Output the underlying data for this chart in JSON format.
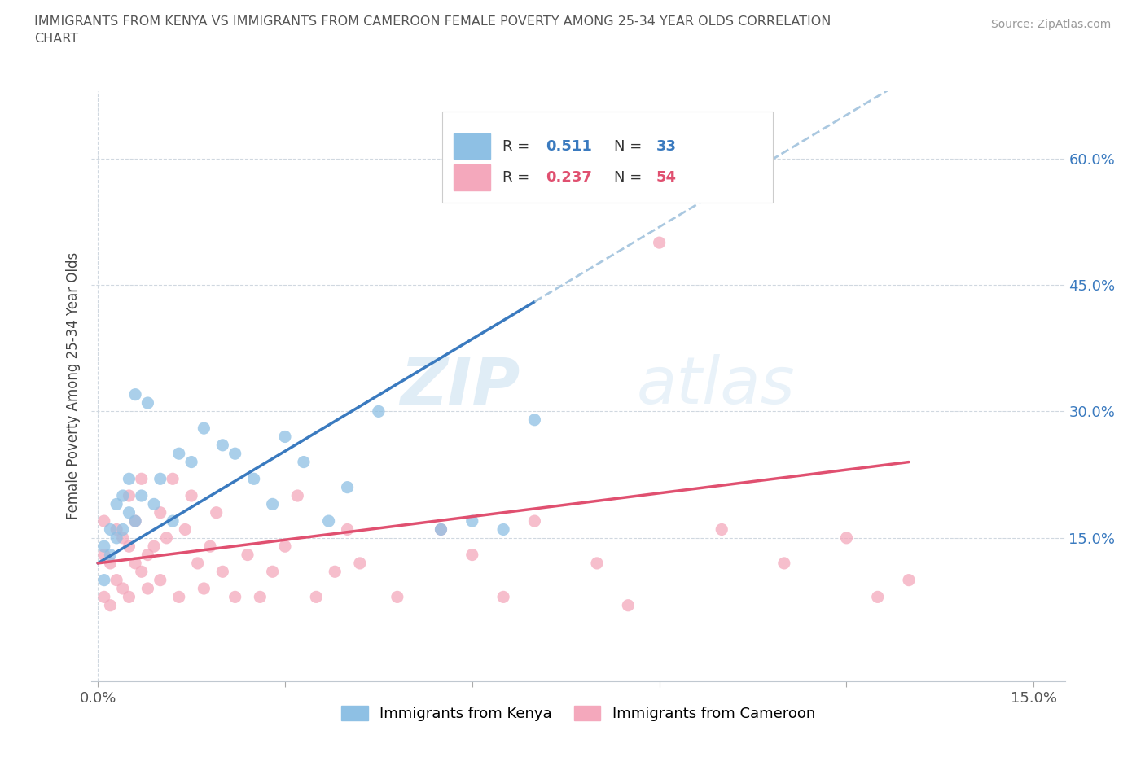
{
  "title": "IMMIGRANTS FROM KENYA VS IMMIGRANTS FROM CAMEROON FEMALE POVERTY AMONG 25-34 YEAR OLDS CORRELATION\nCHART",
  "source": "Source: ZipAtlas.com",
  "ylabel": "Female Poverty Among 25-34 Year Olds",
  "y_ticks_right": [
    0.15,
    0.3,
    0.45,
    0.6
  ],
  "y_tick_labels_right": [
    "15.0%",
    "30.0%",
    "45.0%",
    "60.0%"
  ],
  "xlim": [
    -0.001,
    0.155
  ],
  "ylim": [
    -0.02,
    0.68
  ],
  "kenya_color": "#8ec0e4",
  "cameroon_color": "#f4a8bc",
  "kenya_line_color": "#3a7abf",
  "cameroon_line_color": "#e05070",
  "kenya_R": 0.511,
  "kenya_N": 33,
  "cameroon_R": 0.237,
  "cameroon_N": 54,
  "legend_label_kenya": "Immigrants from Kenya",
  "legend_label_cameroon": "Immigrants from Cameroon",
  "watermark_zip": "ZIP",
  "watermark_atlas": "atlas",
  "kenya_scatter_x": [
    0.001,
    0.001,
    0.002,
    0.002,
    0.003,
    0.003,
    0.004,
    0.004,
    0.005,
    0.005,
    0.006,
    0.006,
    0.007,
    0.008,
    0.009,
    0.01,
    0.012,
    0.013,
    0.015,
    0.017,
    0.02,
    0.022,
    0.025,
    0.028,
    0.03,
    0.033,
    0.037,
    0.04,
    0.045,
    0.055,
    0.06,
    0.065,
    0.07
  ],
  "kenya_scatter_y": [
    0.1,
    0.14,
    0.13,
    0.16,
    0.15,
    0.19,
    0.16,
    0.2,
    0.18,
    0.22,
    0.17,
    0.32,
    0.2,
    0.31,
    0.19,
    0.22,
    0.17,
    0.25,
    0.24,
    0.28,
    0.26,
    0.25,
    0.22,
    0.19,
    0.27,
    0.24,
    0.17,
    0.21,
    0.3,
    0.16,
    0.17,
    0.16,
    0.29
  ],
  "cameroon_scatter_x": [
    0.001,
    0.001,
    0.001,
    0.002,
    0.002,
    0.003,
    0.003,
    0.004,
    0.004,
    0.005,
    0.005,
    0.005,
    0.006,
    0.006,
    0.007,
    0.007,
    0.008,
    0.008,
    0.009,
    0.01,
    0.01,
    0.011,
    0.012,
    0.013,
    0.014,
    0.015,
    0.016,
    0.017,
    0.018,
    0.019,
    0.02,
    0.022,
    0.024,
    0.026,
    0.028,
    0.03,
    0.032,
    0.035,
    0.038,
    0.04,
    0.042,
    0.048,
    0.055,
    0.06,
    0.065,
    0.07,
    0.08,
    0.085,
    0.09,
    0.1,
    0.11,
    0.12,
    0.125,
    0.13
  ],
  "cameroon_scatter_y": [
    0.08,
    0.13,
    0.17,
    0.07,
    0.12,
    0.1,
    0.16,
    0.09,
    0.15,
    0.08,
    0.14,
    0.2,
    0.12,
    0.17,
    0.11,
    0.22,
    0.13,
    0.09,
    0.14,
    0.1,
    0.18,
    0.15,
    0.22,
    0.08,
    0.16,
    0.2,
    0.12,
    0.09,
    0.14,
    0.18,
    0.11,
    0.08,
    0.13,
    0.08,
    0.11,
    0.14,
    0.2,
    0.08,
    0.11,
    0.16,
    0.12,
    0.08,
    0.16,
    0.13,
    0.08,
    0.17,
    0.12,
    0.07,
    0.5,
    0.16,
    0.12,
    0.15,
    0.08,
    0.1
  ]
}
